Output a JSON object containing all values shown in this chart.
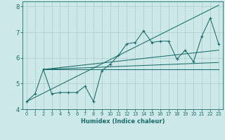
{
  "xlabel": "Humidex (Indice chaleur)",
  "xlim": [
    -0.5,
    23.5
  ],
  "ylim": [
    4.0,
    8.2
  ],
  "bg_color": "#cce8e8",
  "grid_color": "#aacccc",
  "line_color": "#1a6b6b",
  "x_ticks": [
    0,
    1,
    2,
    3,
    4,
    5,
    6,
    7,
    8,
    9,
    10,
    11,
    12,
    13,
    14,
    15,
    16,
    17,
    18,
    19,
    20,
    21,
    22,
    23
  ],
  "y_ticks": [
    4,
    5,
    6,
    7,
    8
  ],
  "scatter_x": [
    0,
    1,
    2,
    3,
    4,
    5,
    6,
    7,
    8,
    9,
    10,
    11,
    12,
    13,
    14,
    15,
    16,
    17,
    18,
    19,
    20,
    21,
    22,
    23
  ],
  "scatter_y": [
    4.3,
    4.6,
    5.55,
    4.6,
    4.65,
    4.65,
    4.65,
    4.9,
    4.3,
    5.5,
    5.75,
    6.1,
    6.55,
    6.6,
    7.05,
    6.6,
    6.65,
    6.65,
    5.95,
    6.3,
    5.85,
    6.85,
    7.55,
    6.55
  ],
  "trend_lines": [
    {
      "x": [
        0,
        23
      ],
      "y": [
        4.3,
        8.05
      ]
    },
    {
      "x": [
        2,
        23
      ],
      "y": [
        5.55,
        5.82
      ]
    },
    {
      "x": [
        2,
        23
      ],
      "y": [
        5.55,
        6.3
      ]
    },
    {
      "x": [
        2,
        23
      ],
      "y": [
        5.55,
        5.55
      ]
    }
  ]
}
